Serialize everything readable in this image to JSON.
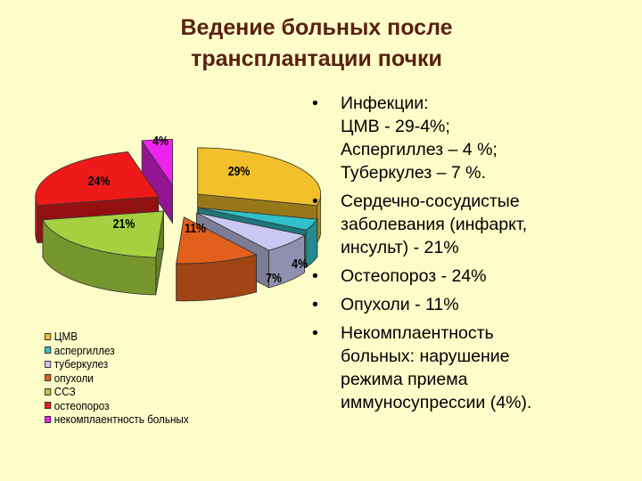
{
  "title": {
    "line1": "Ведение больных после",
    "line2": "трансплантации почки"
  },
  "colors": {
    "background": "#fdfdc9",
    "title": "#5a2010"
  },
  "chart_data": {
    "type": "pie",
    "style": "3d-exploded",
    "grid": false,
    "legend_position": "bottom-left",
    "slices": [
      {
        "name": "ЦМВ",
        "value": 29,
        "label": "29%",
        "color": "#f2c02a"
      },
      {
        "name": "аспергиллез",
        "value": 4,
        "label": "4%",
        "color": "#30c0c8"
      },
      {
        "name": "туберкулез",
        "value": 7,
        "label": "7%",
        "color": "#c8c8f2"
      },
      {
        "name": "опухоли",
        "value": 11,
        "label": "11%",
        "color": "#e0601c"
      },
      {
        "name": "ССЗ",
        "value": 21,
        "label": "21%",
        "color": "#a6d040"
      },
      {
        "name": "остеопороз",
        "value": 24,
        "label": "24%",
        "color": "#ee1a1a"
      },
      {
        "name": "некомплаентность больных",
        "value": 4,
        "label": "4%",
        "color": "#ee22ee"
      }
    ]
  },
  "bullets": [
    {
      "lines": [
        "Инфекции:",
        "ЦМВ - 29-4%;",
        "Аспергиллез – 4 %;",
        "Туберкулез – 7 %."
      ]
    },
    {
      "lines": [
        "Сердечно-сосудистые",
        "заболевания (инфаркт,",
        "инсульт) - 21%"
      ]
    },
    {
      "lines": [
        "Остеопороз - 24%"
      ]
    },
    {
      "lines": [
        "Опухоли - 11%"
      ]
    },
    {
      "lines": [
        "Некомплаентность",
        "больных: нарушение",
        "режима приема",
        "иммуносупрессии (4%)."
      ]
    }
  ],
  "bullet_glyph": "•"
}
